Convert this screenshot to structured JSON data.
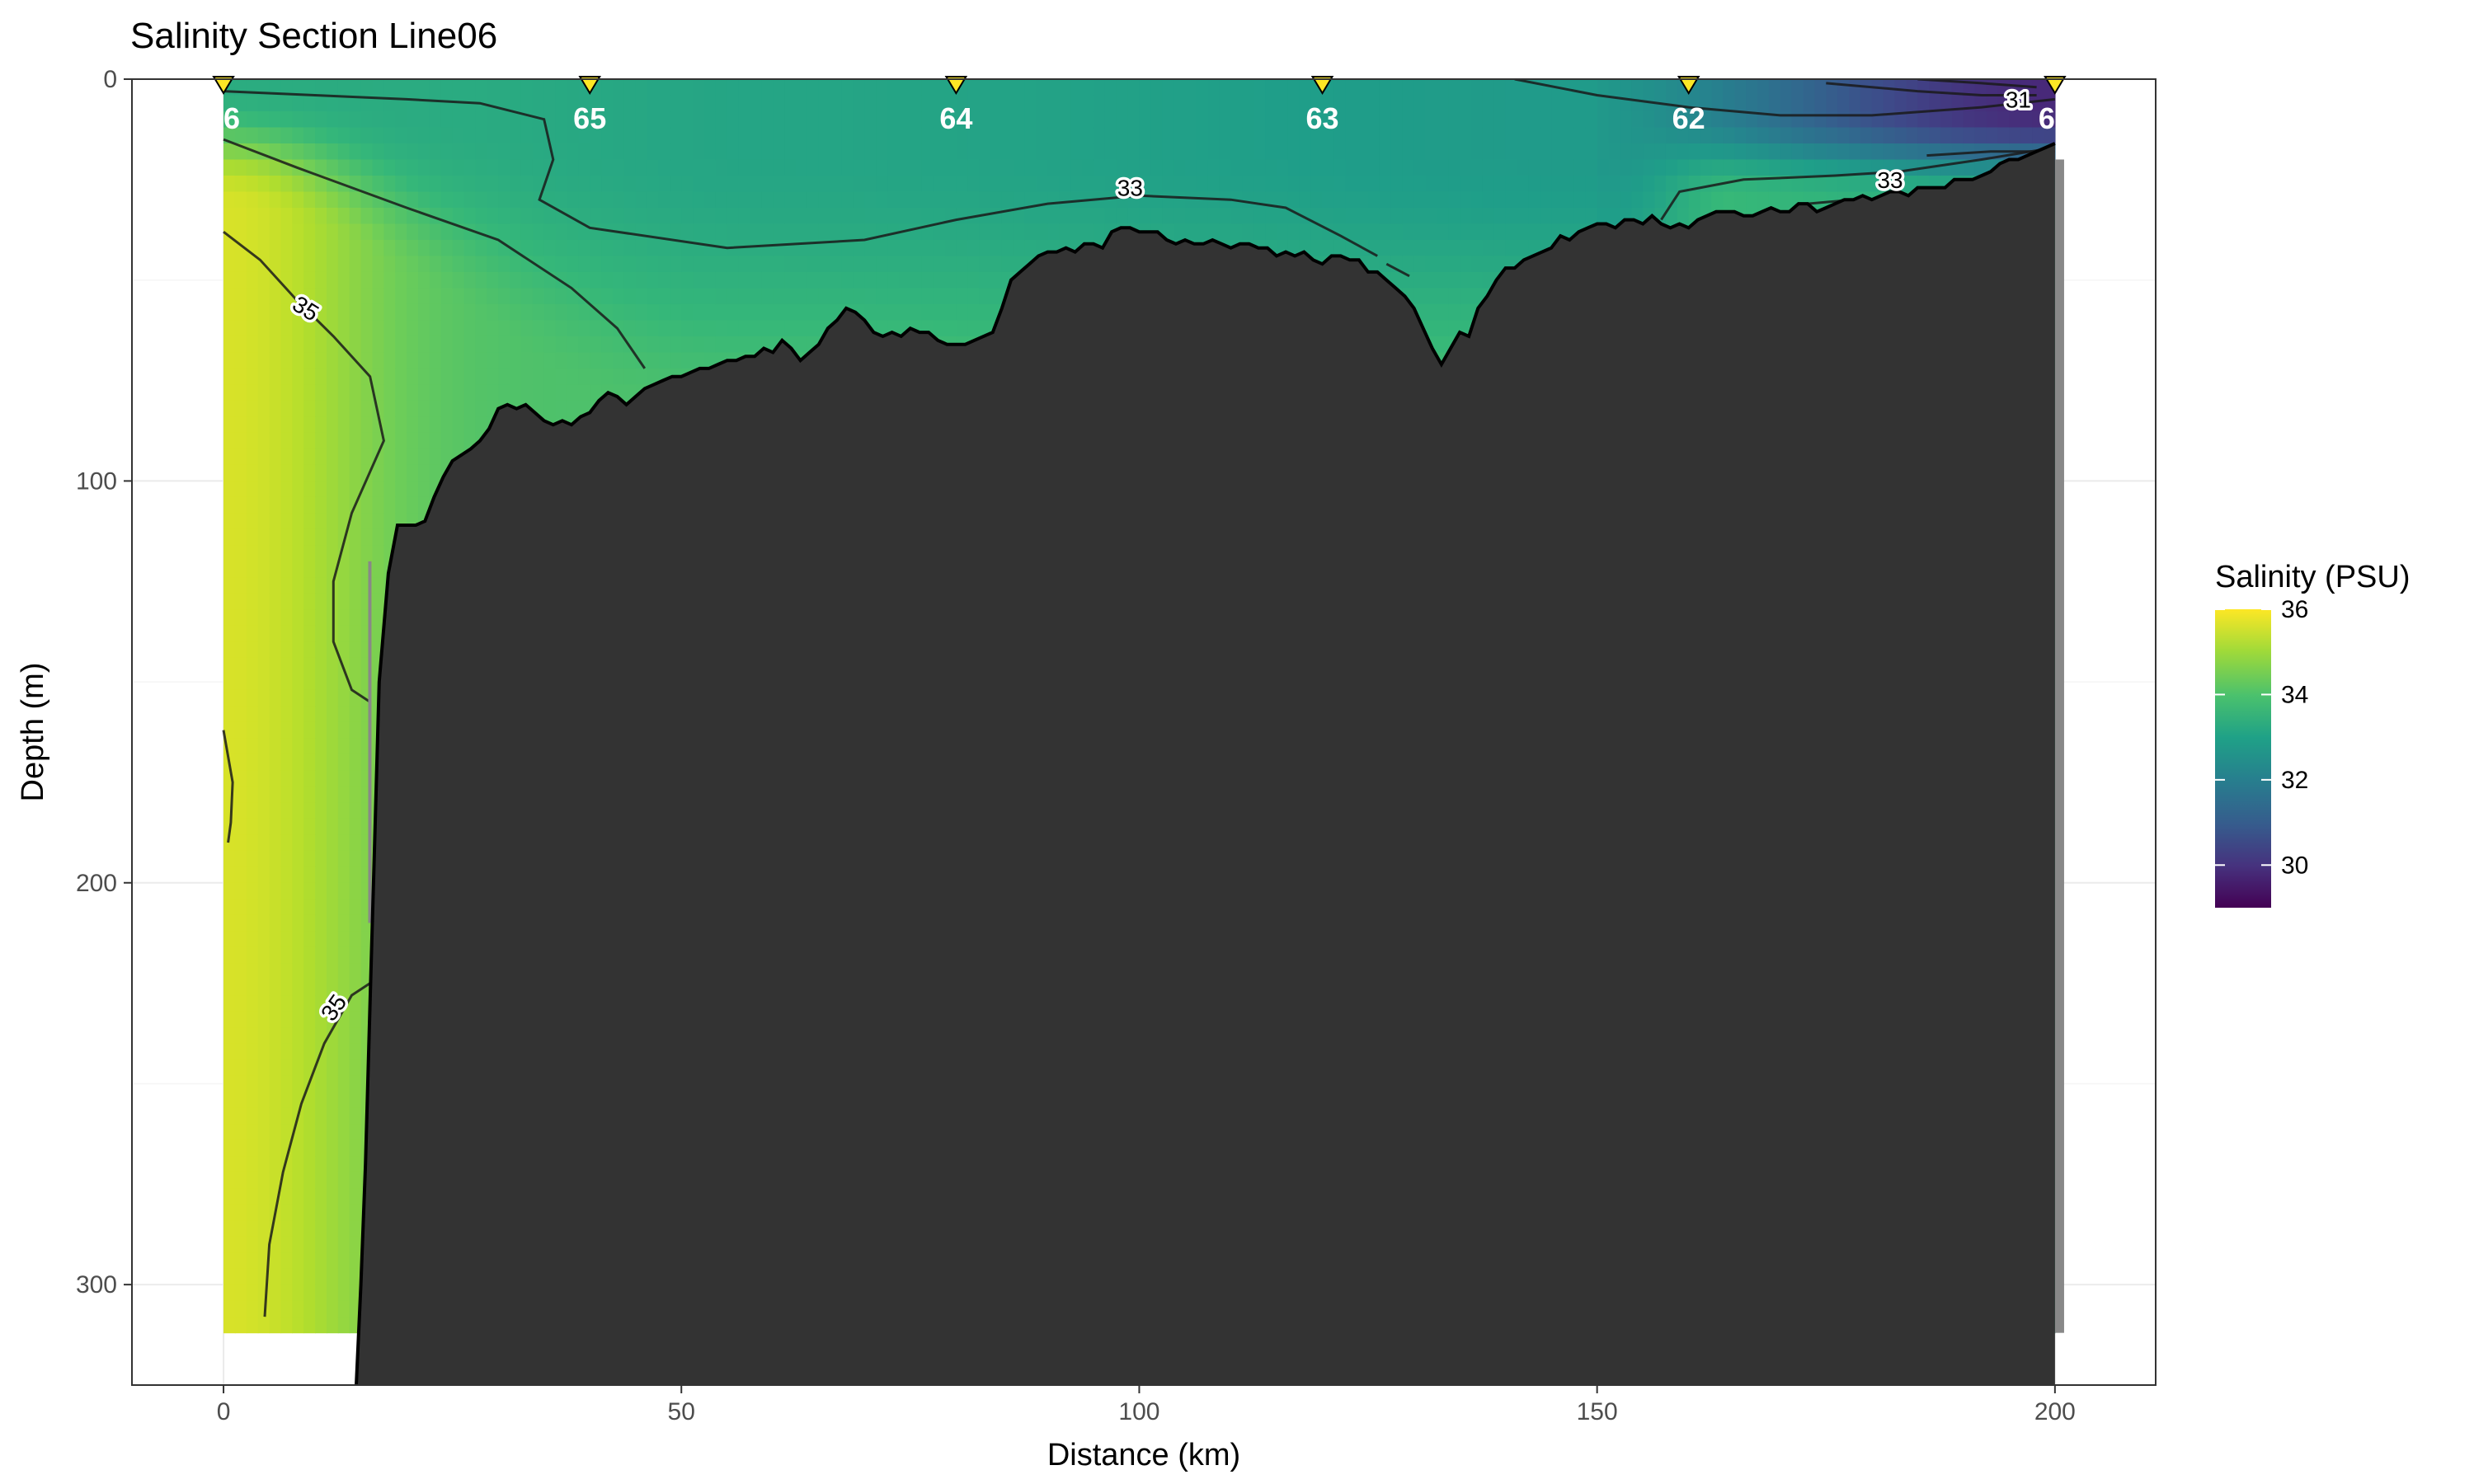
{
  "chart_data": {
    "type": "heatmap",
    "title": "Salinity Section Line06",
    "xlabel": "Distance (km)",
    "ylabel": "Depth (m)",
    "xlim": [
      -10,
      211
    ],
    "ylim": [
      0,
      325
    ],
    "y_reversed": true,
    "x_ticks": [
      0,
      50,
      100,
      150,
      200
    ],
    "x_tick_labels": [
      "0",
      "50",
      "100",
      "150",
      "200"
    ],
    "y_ticks": [
      0,
      100,
      200,
      300
    ],
    "y_tick_labels": [
      "0",
      "100",
      "200",
      "300"
    ],
    "grid": true,
    "legend": {
      "title": "Salinity (PSU)",
      "position": "right",
      "range": [
        29,
        36
      ],
      "ticks": [
        30,
        32,
        34,
        36
      ],
      "tick_labels": [
        "30",
        "32",
        "34",
        "36"
      ],
      "colormap": "viridis"
    },
    "stations": [
      {
        "label": "66",
        "distance": 0
      },
      {
        "label": "65",
        "distance": 40
      },
      {
        "label": "64",
        "distance": 80
      },
      {
        "label": "63",
        "distance": 120
      },
      {
        "label": "62",
        "distance": 160
      },
      {
        "label": "61",
        "distance": 200
      }
    ],
    "station_marker_color": "#FDE725",
    "data_extent": {
      "x": [
        0,
        200
      ],
      "max_depth": 312
    },
    "salinity_field_samples": [
      {
        "distance": 0,
        "depth": 0,
        "salinity": 33.4
      },
      {
        "distance": 0,
        "depth": 100,
        "salinity": 35.8
      },
      {
        "distance": 0,
        "depth": 180,
        "salinity": 35.9
      },
      {
        "distance": 0,
        "depth": 300,
        "salinity": 35.1
      },
      {
        "distance": 10,
        "depth": 60,
        "salinity": 34.6
      },
      {
        "distance": 40,
        "depth": 10,
        "salinity": 33.0
      },
      {
        "distance": 60,
        "depth": 30,
        "salinity": 33.1
      },
      {
        "distance": 100,
        "depth": 20,
        "salinity": 32.8
      },
      {
        "distance": 130,
        "depth": 50,
        "salinity": 32.8
      },
      {
        "distance": 160,
        "depth": 5,
        "salinity": 31.5
      },
      {
        "distance": 180,
        "depth": 30,
        "salinity": 33.6
      },
      {
        "distance": 200,
        "depth": 2,
        "salinity": 29.5
      }
    ],
    "contour_labels": [
      {
        "text": "35",
        "distance": 9,
        "depth": 57
      },
      {
        "text": "35",
        "distance": 12,
        "depth": 231
      },
      {
        "text": "33",
        "distance": 99,
        "depth": 27
      },
      {
        "text": "33",
        "distance": 182,
        "depth": 25
      },
      {
        "text": "31",
        "distance": 196,
        "depth": 5
      }
    ],
    "bathymetry": {
      "color": "#333333",
      "points": [
        [
          14.5,
          325
        ],
        [
          15,
          300
        ],
        [
          15.5,
          270
        ],
        [
          16,
          230
        ],
        [
          16.5,
          190
        ],
        [
          17,
          150
        ],
        [
          18,
          123
        ],
        [
          19,
          111
        ],
        [
          21,
          111
        ],
        [
          22,
          110
        ],
        [
          23,
          104
        ],
        [
          24,
          99
        ],
        [
          25,
          95
        ],
        [
          27,
          92
        ],
        [
          28,
          90
        ],
        [
          29,
          87
        ],
        [
          30,
          82
        ],
        [
          31,
          81
        ],
        [
          32,
          82
        ],
        [
          33,
          81
        ],
        [
          34,
          83
        ],
        [
          35,
          85
        ],
        [
          36,
          86
        ],
        [
          37,
          85
        ],
        [
          38,
          86
        ],
        [
          39,
          84
        ],
        [
          40,
          83
        ],
        [
          41,
          80
        ],
        [
          42,
          78
        ],
        [
          43,
          79
        ],
        [
          44,
          81
        ],
        [
          45,
          79
        ],
        [
          46,
          77
        ],
        [
          47,
          76
        ],
        [
          48,
          75
        ],
        [
          49,
          74
        ],
        [
          50,
          74
        ],
        [
          51,
          73
        ],
        [
          52,
          72
        ],
        [
          53,
          72
        ],
        [
          54,
          71
        ],
        [
          55,
          70
        ],
        [
          56,
          70
        ],
        [
          57,
          69
        ],
        [
          58,
          69
        ],
        [
          59,
          67
        ],
        [
          60,
          68
        ],
        [
          61,
          65
        ],
        [
          62,
          67
        ],
        [
          63,
          70
        ],
        [
          64,
          68
        ],
        [
          65,
          66
        ],
        [
          66,
          62
        ],
        [
          67,
          60
        ],
        [
          68,
          57
        ],
        [
          69,
          58
        ],
        [
          70,
          60
        ],
        [
          71,
          63
        ],
        [
          72,
          64
        ],
        [
          73,
          63
        ],
        [
          74,
          64
        ],
        [
          75,
          62
        ],
        [
          76,
          63
        ],
        [
          77,
          63
        ],
        [
          78,
          65
        ],
        [
          79,
          66
        ],
        [
          80,
          66
        ],
        [
          81,
          66
        ],
        [
          82,
          65
        ],
        [
          83,
          64
        ],
        [
          84,
          63
        ],
        [
          85,
          57
        ],
        [
          86,
          50
        ],
        [
          87,
          48
        ],
        [
          88,
          46
        ],
        [
          89,
          44
        ],
        [
          90,
          43
        ],
        [
          91,
          43
        ],
        [
          92,
          42
        ],
        [
          93,
          43
        ],
        [
          94,
          41
        ],
        [
          95,
          41
        ],
        [
          96,
          42
        ],
        [
          97,
          38
        ],
        [
          98,
          37
        ],
        [
          99,
          37
        ],
        [
          100,
          38
        ],
        [
          101,
          38
        ],
        [
          102,
          38
        ],
        [
          103,
          40
        ],
        [
          104,
          41
        ],
        [
          105,
          40
        ],
        [
          106,
          41
        ],
        [
          107,
          41
        ],
        [
          108,
          40
        ],
        [
          109,
          41
        ],
        [
          110,
          42
        ],
        [
          111,
          41
        ],
        [
          112,
          41
        ],
        [
          113,
          42
        ],
        [
          114,
          42
        ],
        [
          115,
          44
        ],
        [
          116,
          43
        ],
        [
          117,
          44
        ],
        [
          118,
          43
        ],
        [
          119,
          45
        ],
        [
          120,
          46
        ],
        [
          121,
          44
        ],
        [
          122,
          44
        ],
        [
          123,
          45
        ],
        [
          124,
          45
        ],
        [
          125,
          48
        ],
        [
          126,
          48
        ],
        [
          127,
          50
        ],
        [
          128,
          52
        ],
        [
          129,
          54
        ],
        [
          130,
          57
        ],
        [
          131,
          62
        ],
        [
          132,
          67
        ],
        [
          133,
          71
        ],
        [
          134,
          67
        ],
        [
          135,
          63
        ],
        [
          136,
          64
        ],
        [
          137,
          57
        ],
        [
          138,
          54
        ],
        [
          139,
          50
        ],
        [
          140,
          47
        ],
        [
          141,
          47
        ],
        [
          142,
          45
        ],
        [
          143,
          44
        ],
        [
          144,
          43
        ],
        [
          145,
          42
        ],
        [
          146,
          39
        ],
        [
          147,
          40
        ],
        [
          148,
          38
        ],
        [
          149,
          37
        ],
        [
          150,
          36
        ],
        [
          151,
          36
        ],
        [
          152,
          37
        ],
        [
          153,
          35
        ],
        [
          154,
          35
        ],
        [
          155,
          36
        ],
        [
          156,
          34
        ],
        [
          157,
          36
        ],
        [
          158,
          37
        ],
        [
          159,
          36
        ],
        [
          160,
          37
        ],
        [
          161,
          35
        ],
        [
          162,
          34
        ],
        [
          163,
          33
        ],
        [
          164,
          33
        ],
        [
          165,
          33
        ],
        [
          166,
          34
        ],
        [
          167,
          34
        ],
        [
          168,
          33
        ],
        [
          169,
          32
        ],
        [
          170,
          33
        ],
        [
          171,
          33
        ],
        [
          172,
          31
        ],
        [
          173,
          31
        ],
        [
          174,
          33
        ],
        [
          175,
          32
        ],
        [
          176,
          31
        ],
        [
          177,
          30
        ],
        [
          178,
          30
        ],
        [
          179,
          29
        ],
        [
          180,
          30
        ],
        [
          181,
          29
        ],
        [
          182,
          28
        ],
        [
          183,
          28
        ],
        [
          184,
          29
        ],
        [
          185,
          27
        ],
        [
          186,
          27
        ],
        [
          187,
          27
        ],
        [
          188,
          27
        ],
        [
          189,
          25
        ],
        [
          190,
          25
        ],
        [
          191,
          25
        ],
        [
          192,
          24
        ],
        [
          193,
          23
        ],
        [
          194,
          21
        ],
        [
          195,
          20
        ],
        [
          196,
          20
        ],
        [
          197,
          19
        ],
        [
          198,
          18
        ],
        [
          199,
          17
        ],
        [
          200,
          16
        ],
        [
          200,
          325
        ]
      ]
    }
  }
}
